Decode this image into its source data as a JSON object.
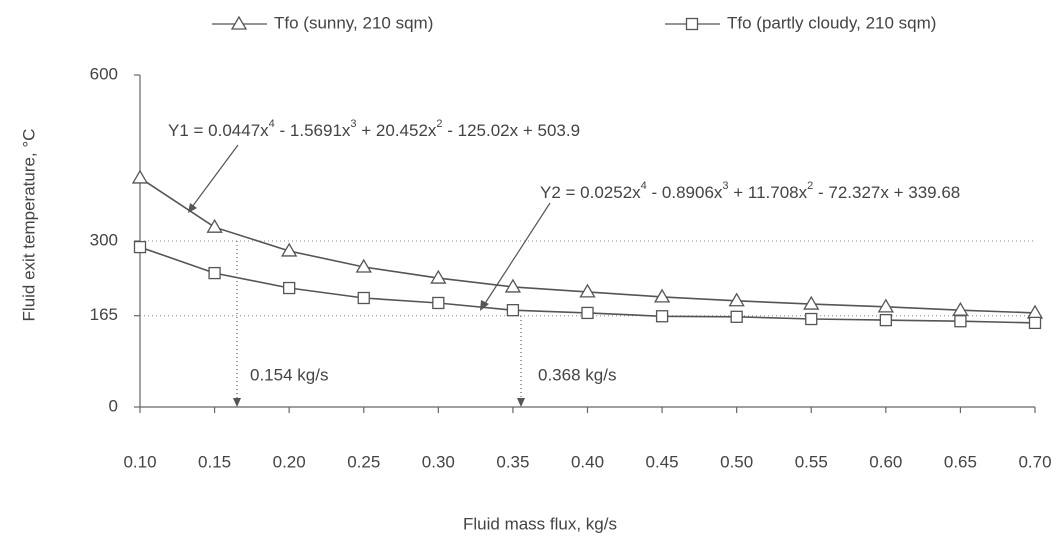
{
  "chart_data": {
    "type": "line",
    "x_label": "Fluid mass flux,  kg/s",
    "y_label": "Fluid exit temperature,  °C",
    "x": [
      0.1,
      0.15,
      0.2,
      0.25,
      0.3,
      0.35,
      0.4,
      0.45,
      0.5,
      0.55,
      0.6,
      0.65,
      0.7
    ],
    "xlim": [
      0.1,
      0.7
    ],
    "xticks": [
      {
        "value": 0.1,
        "label": "0.10"
      },
      0.15,
      {
        "value": 0.2,
        "label": "0.20"
      },
      0.25,
      {
        "value": 0.3,
        "label": "0.30"
      },
      0.35,
      {
        "value": 0.4,
        "label": "0.40"
      },
      0.45,
      {
        "value": 0.5,
        "label": "0.50"
      },
      0.55,
      {
        "value": 0.6,
        "label": "0.60"
      },
      0.65,
      {
        "value": 0.7,
        "label": "0.70"
      }
    ],
    "ylim": [
      0,
      600
    ],
    "yticks": [
      0,
      165,
      300,
      600
    ],
    "grid": true,
    "series": [
      {
        "name": "Tfo (sunny, 210 sqm)",
        "color": "#555555",
        "marker": "triangle",
        "values": [
          414,
          325,
          282,
          253,
          233,
          217,
          208,
          199,
          192,
          186,
          181,
          175,
          170
        ]
      },
      {
        "name": "Tfo (partly cloudy, 210 sqm)",
        "color": "#555555",
        "marker": "square",
        "values": [
          289,
          242,
          215,
          197,
          188,
          175,
          170,
          164,
          163,
          159,
          157,
          155,
          152
        ]
      }
    ],
    "annotations": [
      {
        "segments": [
          "Y1 = 0.0447x",
          "4",
          " - 1.5691x",
          "3",
          " + 20.452x",
          "2",
          " - 125.02x + 503.9"
        ]
      },
      {
        "segments": [
          "Y2 = 0.0252x",
          "4",
          " - 0.8906x",
          "3",
          " + 11.708x",
          "2",
          " - 72.327x + 339.68"
        ]
      },
      {
        "text": "0.154 kg/s"
      },
      {
        "text": "0.368 kg/s"
      }
    ]
  }
}
